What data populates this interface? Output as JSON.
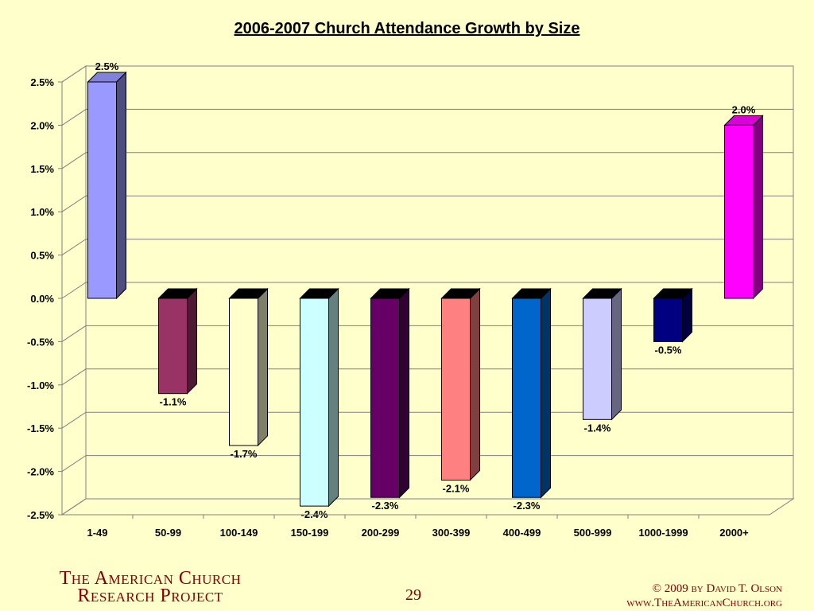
{
  "chart_data": {
    "type": "bar",
    "title": "2006-2007 Church Attendance Growth by Size",
    "categories": [
      "1-49",
      "50-99",
      "100-149",
      "150-199",
      "200-299",
      "300-399",
      "400-499",
      "500-999",
      "1000-1999",
      "2000+"
    ],
    "values": [
      2.5,
      -1.1,
      -1.7,
      -2.4,
      -2.3,
      -2.1,
      -2.3,
      -1.4,
      -0.5,
      2.0
    ],
    "value_labels": [
      "2.5%",
      "-1.1%",
      "-1.7%",
      "-2.4%",
      "-2.3%",
      "-2.1%",
      "-2.3%",
      "-1.4%",
      "-0.5%",
      "2.0%"
    ],
    "bar_colors": [
      "#9999ff",
      "#993366",
      "#ffffcc",
      "#ccffff",
      "#660066",
      "#ff8080",
      "#0066cc",
      "#ccccff",
      "#000080",
      "#ff00ff"
    ],
    "ylim": [
      -2.5,
      2.5
    ],
    "y_ticks": [
      2.5,
      2.0,
      1.5,
      1.0,
      0.5,
      0.0,
      -0.5,
      -1.0,
      -1.5,
      -2.0,
      -2.5
    ],
    "y_tick_labels": [
      "2.5%",
      "2.0%",
      "1.5%",
      "1.0%",
      "0.5%",
      "0.0%",
      "-0.5%",
      "-1.0%",
      "-1.5%",
      "-2.0%",
      "-2.5%"
    ],
    "xlabel": "",
    "ylabel": "",
    "grid": true
  },
  "footer": {
    "org_line1": "The American Church",
    "org_line2": "Research Project",
    "page_number": "29",
    "copyright": "© 2009 by David T. Olson",
    "website": "www.TheAmericanChurch.org"
  }
}
